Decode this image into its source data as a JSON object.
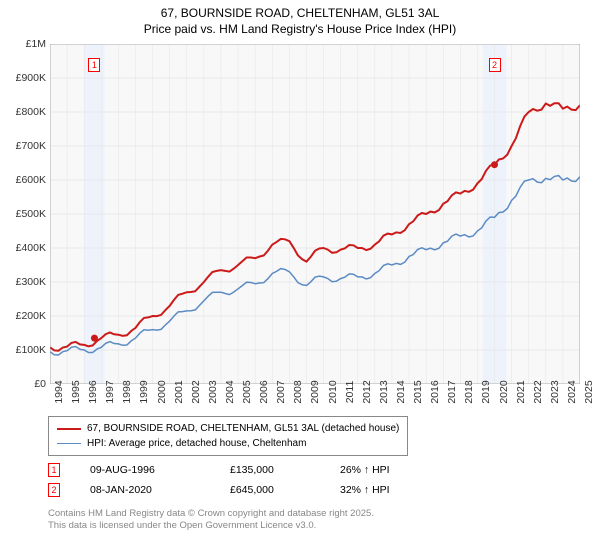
{
  "title_line1": "67, BOURNSIDE ROAD, CHELTENHAM, GL51 3AL",
  "title_line2": "Price paid vs. HM Land Registry's House Price Index (HPI)",
  "chart": {
    "type": "line",
    "background_color": "#ffffff",
    "plot_bg_color": "#f8f8f8",
    "grid_color": "#e4e4e4",
    "border_color": "#999999",
    "x_years": [
      1994,
      1995,
      1996,
      1997,
      1998,
      1999,
      2000,
      2001,
      2002,
      2003,
      2004,
      2005,
      2006,
      2007,
      2008,
      2009,
      2010,
      2011,
      2012,
      2013,
      2014,
      2015,
      2016,
      2017,
      2018,
      2019,
      2020,
      2021,
      2022,
      2023,
      2024,
      2025
    ],
    "ylim": [
      0,
      1000000
    ],
    "ytick_step": 100000,
    "y_labels": [
      "£0",
      "£100K",
      "£200K",
      "£300K",
      "£400K",
      "£500K",
      "£600K",
      "£700K",
      "£800K",
      "£900K",
      "£1M"
    ],
    "series": [
      {
        "name": "price_paid",
        "color": "#cc1a1a",
        "line_width": 2,
        "values": [
          108000,
          110000,
          115000,
          135000,
          145000,
          165000,
          200000,
          230000,
          270000,
          300000,
          335000,
          350000,
          370000,
          410000,
          420000,
          360000,
          400000,
          395000,
          400000,
          410000,
          440000,
          470000,
          500000,
          530000,
          560000,
          590000,
          645000,
          700000,
          800000,
          825000,
          810000,
          820000
        ]
      },
      {
        "name": "hpi",
        "color": "#5b8bc4",
        "line_width": 1.5,
        "values": [
          95000,
          98000,
          100000,
          108000,
          118000,
          135000,
          160000,
          185000,
          215000,
          245000,
          270000,
          280000,
          295000,
          325000,
          330000,
          290000,
          315000,
          310000,
          315000,
          325000,
          350000,
          375000,
          395000,
          415000,
          435000,
          450000,
          490000,
          540000,
          600000,
          605000,
          600000,
          610000
        ]
      }
    ],
    "event_markers": [
      {
        "n": "1",
        "year": 1996.6,
        "y_pos": 58
      },
      {
        "n": "2",
        "year": 2020.0,
        "y_pos": 58
      }
    ],
    "highlight_bands": [
      {
        "from_year": 1996.0,
        "to_year": 1997.2,
        "color": "#eef3fb"
      },
      {
        "from_year": 2019.3,
        "to_year": 2020.7,
        "color": "#eef3fb"
      }
    ],
    "sale_dots": [
      {
        "year": 1996.6,
        "value": 135000,
        "color": "#cc1a1a"
      },
      {
        "year": 2020.0,
        "value": 645000,
        "color": "#cc1a1a"
      }
    ]
  },
  "legend": {
    "items": [
      {
        "color": "#cc1a1a",
        "width": 2,
        "label": "67, BOURNSIDE ROAD, CHELTENHAM, GL51 3AL (detached house)"
      },
      {
        "color": "#5b8bc4",
        "width": 1.5,
        "label": "HPI: Average price, detached house, Cheltenham"
      }
    ]
  },
  "events": [
    {
      "n": "1",
      "date": "09-AUG-1996",
      "price": "£135,000",
      "delta": "26% ↑ HPI"
    },
    {
      "n": "2",
      "date": "08-JAN-2020",
      "price": "£645,000",
      "delta": "32% ↑ HPI"
    }
  ],
  "attribution_line1": "Contains HM Land Registry data © Crown copyright and database right 2025.",
  "attribution_line2": "This data is licensed under the Open Government Licence v3.0."
}
